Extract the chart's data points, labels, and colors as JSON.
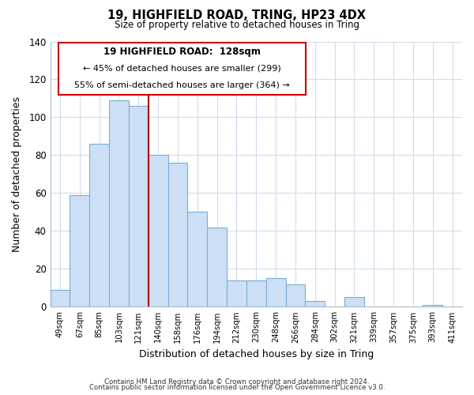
{
  "title": "19, HIGHFIELD ROAD, TRING, HP23 4DX",
  "subtitle": "Size of property relative to detached houses in Tring",
  "xlabel": "Distribution of detached houses by size in Tring",
  "ylabel": "Number of detached properties",
  "footnote1": "Contains HM Land Registry data © Crown copyright and database right 2024.",
  "footnote2": "Contains public sector information licensed under the Open Government Licence v3.0.",
  "categories": [
    "49sqm",
    "67sqm",
    "85sqm",
    "103sqm",
    "121sqm",
    "140sqm",
    "158sqm",
    "176sqm",
    "194sqm",
    "212sqm",
    "230sqm",
    "248sqm",
    "266sqm",
    "284sqm",
    "302sqm",
    "321sqm",
    "339sqm",
    "357sqm",
    "375sqm",
    "393sqm",
    "411sqm"
  ],
  "values": [
    9,
    59,
    86,
    109,
    106,
    80,
    76,
    50,
    42,
    14,
    14,
    15,
    12,
    3,
    0,
    5,
    0,
    0,
    0,
    1,
    0
  ],
  "bar_color": "#ccdff5",
  "bar_edge_color": "#7aadd4",
  "vline_color": "#aa0000",
  "vline_index": 5,
  "ylim": [
    0,
    140
  ],
  "yticks": [
    0,
    20,
    40,
    60,
    80,
    100,
    120,
    140
  ],
  "annotation_title": "19 HIGHFIELD ROAD:  128sqm",
  "annotation_line1": "← 45% of detached houses are smaller (299)",
  "annotation_line2": "55% of semi-detached houses are larger (364) →",
  "background_color": "#ffffff",
  "grid_color": "#d0dcec",
  "spine_color": "#aabbcc"
}
